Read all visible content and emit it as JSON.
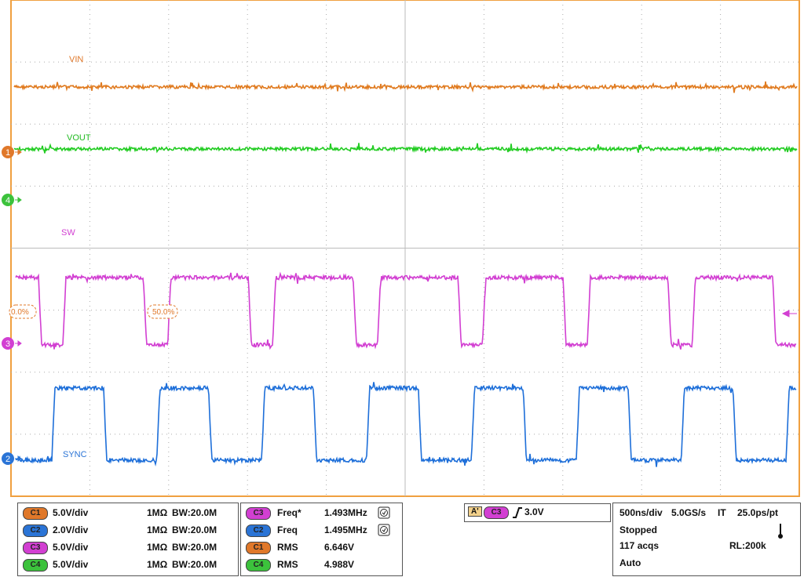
{
  "traces": {
    "vin": "VIN",
    "vout": "VOUT",
    "sw": "SW",
    "sync": "SYNC"
  },
  "markers": [
    "1",
    "4",
    "3",
    "2"
  ],
  "cursor_labels": [
    "0.0%",
    "50.0%"
  ],
  "channels": [
    {
      "id": "C1",
      "scale": "5.0V/div",
      "impedance": "1MΩ",
      "bandwidth": "BW:20.0M",
      "color": "#e0782a"
    },
    {
      "id": "C2",
      "scale": "2.0V/div",
      "impedance": "1MΩ",
      "bandwidth": "BW:20.0M",
      "color": "#2a74d6"
    },
    {
      "id": "C3",
      "scale": "5.0V/div",
      "impedance": "1MΩ",
      "bandwidth": "BW:20.0M",
      "color": "#d23fd2"
    },
    {
      "id": "C4",
      "scale": "5.0V/div",
      "impedance": "1MΩ",
      "bandwidth": "BW:20.0M",
      "color": "#3cc23c"
    }
  ],
  "measurements": [
    {
      "source": "C3",
      "name": "Freq*",
      "value": "1.493MHz",
      "color": "#d23fd2"
    },
    {
      "source": "C2",
      "name": "Freq",
      "value": "1.495MHz",
      "color": "#2a74d6"
    },
    {
      "source": "C1",
      "name": "RMS",
      "value": "6.646V",
      "color": "#e0782a"
    },
    {
      "source": "C4",
      "name": "RMS",
      "value": "4.988V",
      "color": "#3cc23c"
    }
  ],
  "trigger": {
    "label": "A'",
    "source": "C3",
    "level": "3.0V"
  },
  "acquisition": {
    "timebase": "500ns/div",
    "sample_rate": "5.0GS/s",
    "mode": "IT",
    "resolution": "25.0ps/pt",
    "state": "Stopped",
    "acqs": "117 acqs",
    "record_length": "RL:200k",
    "trigger_mode": "Auto"
  }
}
